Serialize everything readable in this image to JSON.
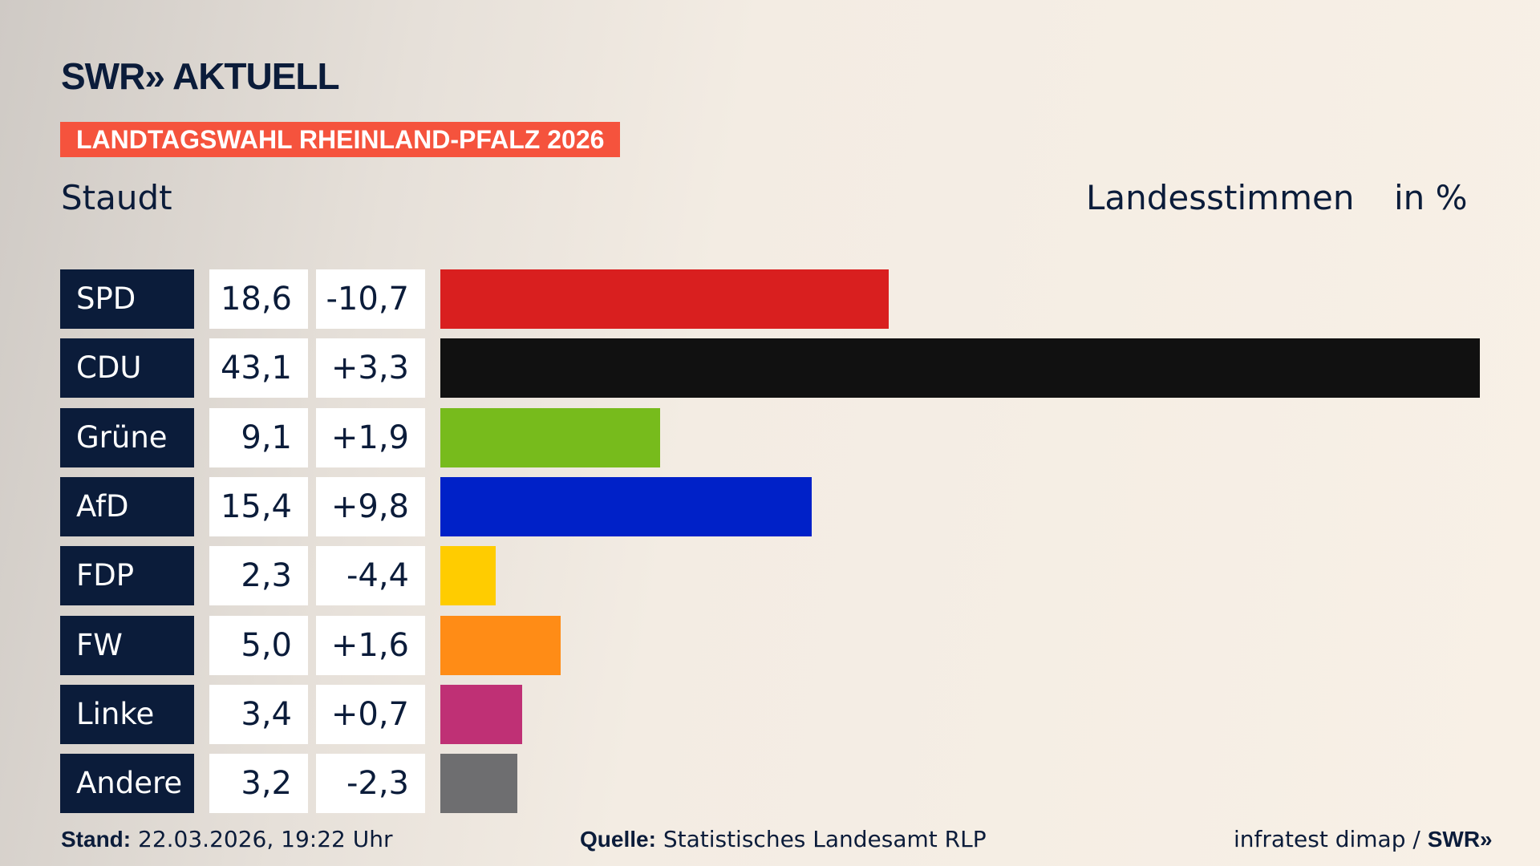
{
  "header": {
    "logo": "SWR» AKTUELL",
    "badge": "LANDTAGSWAHL RHEINLAND-PFALZ 2026",
    "district": "Staudt",
    "measure": "Landesstimmen",
    "unit": "in %"
  },
  "chart_data": {
    "type": "bar",
    "orientation": "horizontal",
    "xlim": [
      0,
      43.1
    ],
    "categories": [
      "SPD",
      "CDU",
      "Grüne",
      "AfD",
      "FDP",
      "FW",
      "Linke",
      "Andere"
    ],
    "values": [
      18.6,
      43.1,
      9.1,
      15.4,
      2.3,
      5.0,
      3.4,
      3.2
    ],
    "value_labels": [
      "18,6",
      "43,1",
      "9,1",
      "15,4",
      "2,3",
      "5,0",
      "3,4",
      "3,2"
    ],
    "diff_labels": [
      "-10,7",
      "+3,3",
      "+1,9",
      "+9,8",
      "-4,4",
      "+1,6",
      "+0,7",
      "-2,3"
    ],
    "colors": [
      "#d91f1f",
      "#111111",
      "#77bb1c",
      "#0021c8",
      "#ffcc00",
      "#ff8c16",
      "#bf3075",
      "#6e6e70"
    ]
  },
  "footer": {
    "stand_label": "Stand:",
    "stand_value": " 22.03.2026, 19:22 Uhr",
    "source_label": "Quelle:",
    "source_value": " Statistisches Landesamt RLP",
    "credit": "infratest dimap / ",
    "credit_logo": "SWR»"
  }
}
